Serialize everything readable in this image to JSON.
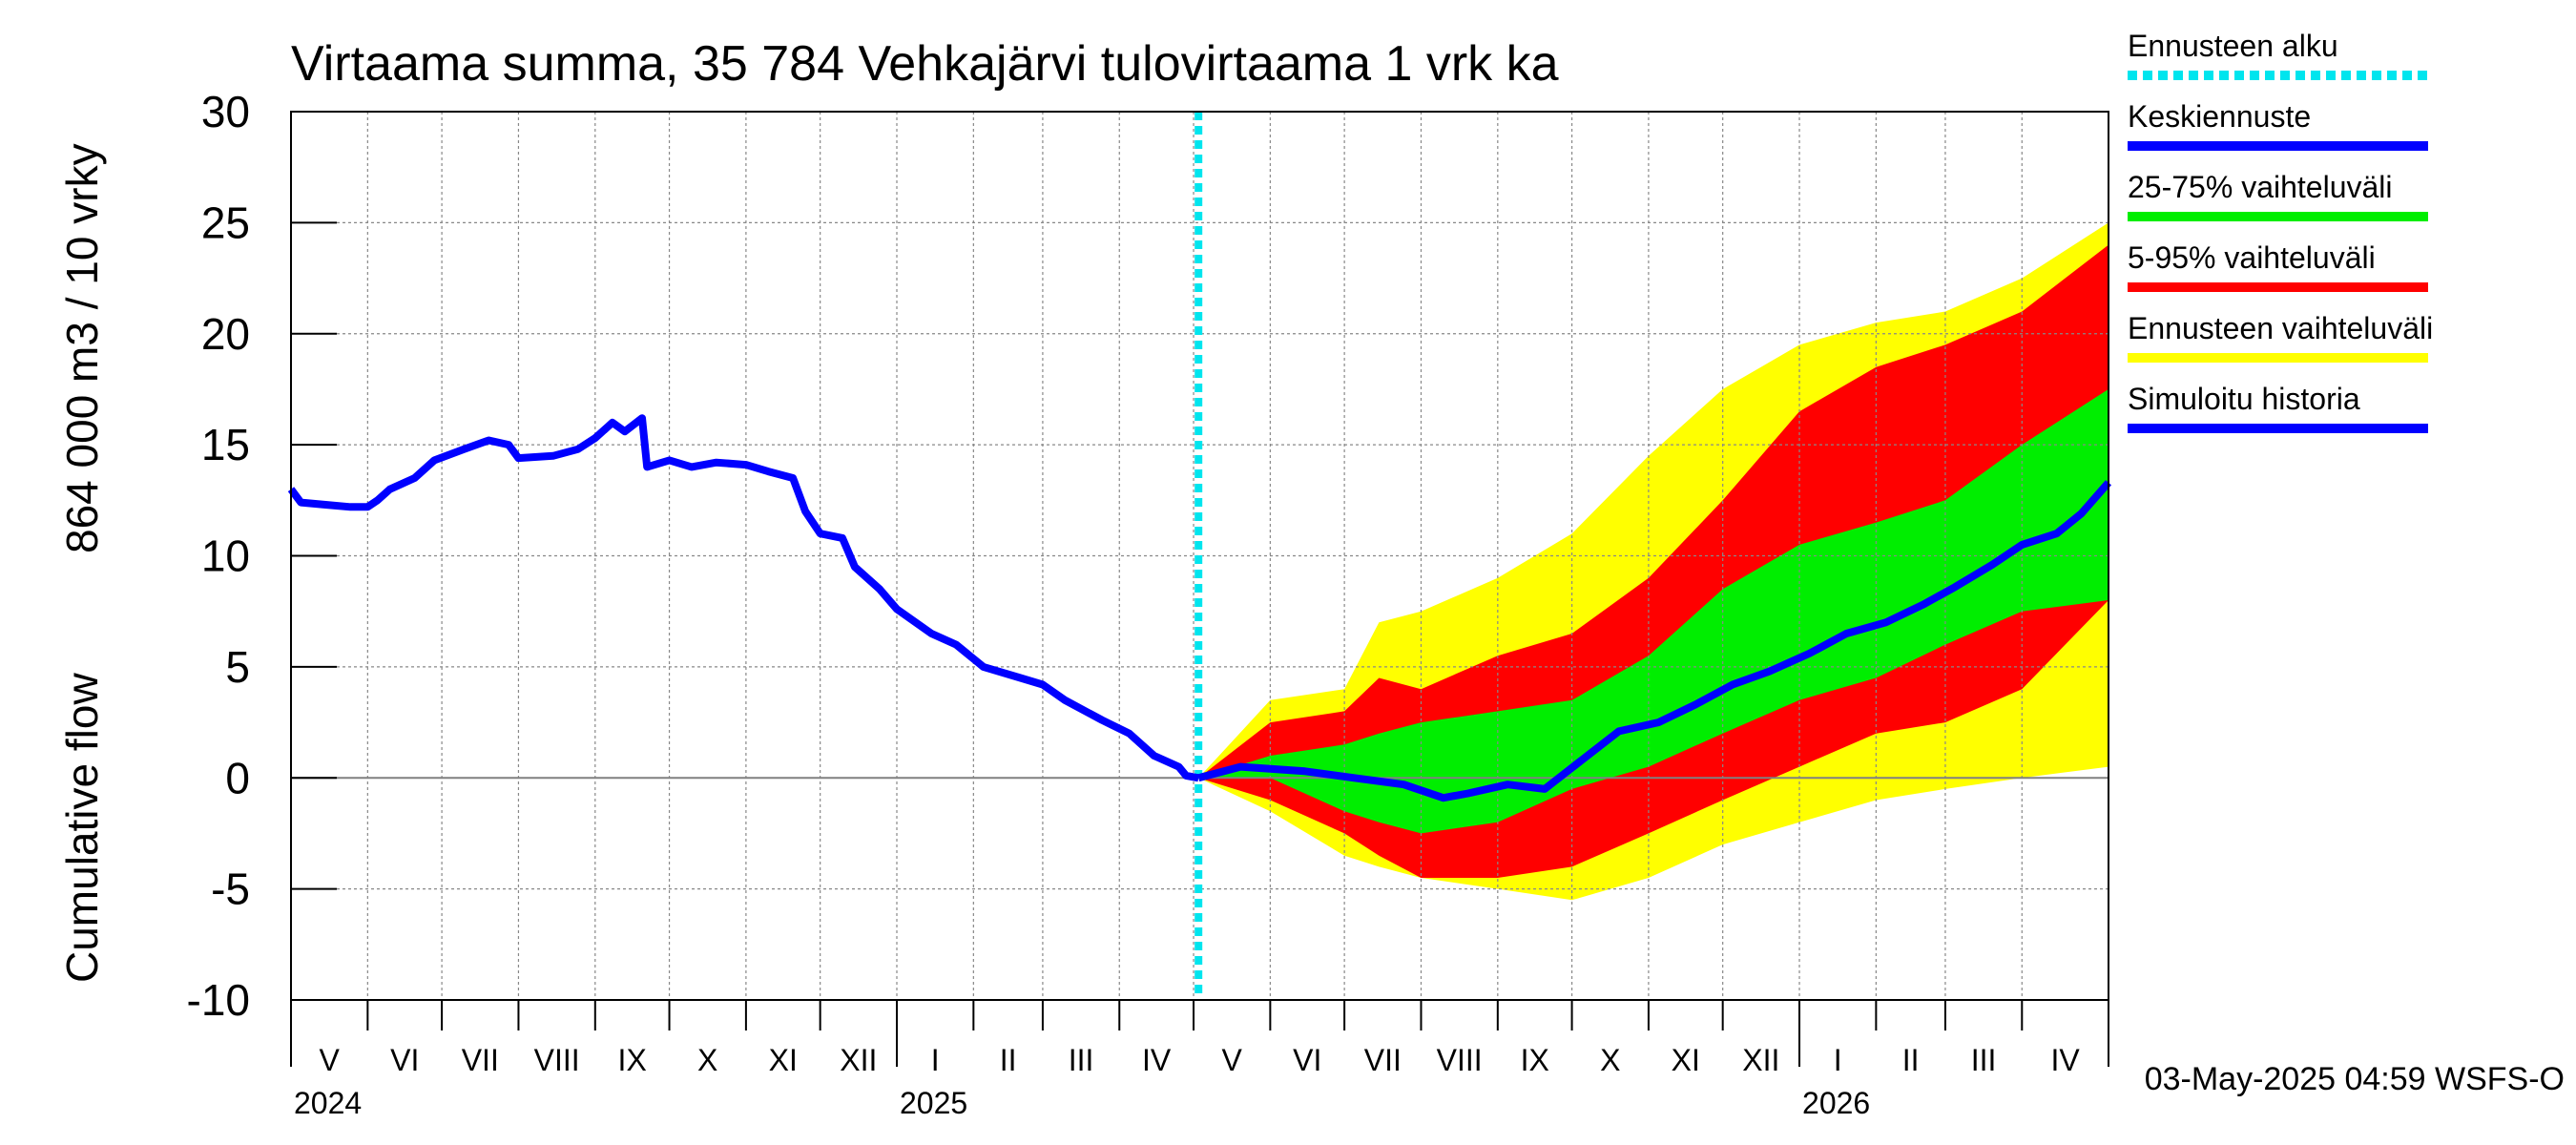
{
  "title": "Virtaama summa, 35 784 Vehkajärvi tulovirtaama 1 vrk ka",
  "ylabel_line1": "Cumulative flow",
  "ylabel_line2": "864 000 m3 / 10 vrky",
  "footer": "03-May-2025 04:59 WSFS-O",
  "colors": {
    "forecast_start": "#00e5ee",
    "median": "#0000ff",
    "band_25_75": "#00ee00",
    "band_5_95": "#ff0000",
    "band_full": "#ffff00",
    "history": "#0000ff",
    "grid": "#888888",
    "zero_line": "#808080"
  },
  "legend": [
    {
      "label": "Ennusteen alku",
      "color": "#00e5ee",
      "style": "dotted"
    },
    {
      "label": "Keskiennuste",
      "color": "#0000ff",
      "style": "solid"
    },
    {
      "label": "25-75% vaihteluväli",
      "color": "#00ee00",
      "style": "solid"
    },
    {
      "label": "5-95% vaihteluväli",
      "color": "#ff0000",
      "style": "solid"
    },
    {
      "label": "Ennusteen vaihteluväli",
      "color": "#ffff00",
      "style": "solid"
    },
    {
      "label": "Simuloitu historia",
      "color": "#0000ff",
      "style": "solid"
    }
  ],
  "chart_data": {
    "type": "area",
    "title": "Virtaama summa, 35 784 Vehkajärvi tulovirtaama 1 vrk ka",
    "ylabel": "Cumulative flow    864 000 m3 / 10 vrky",
    "ylim": [
      -10,
      30
    ],
    "yticks": [
      -10,
      -5,
      0,
      5,
      10,
      15,
      20,
      25,
      30
    ],
    "xlim": [
      "2024-05-01",
      "2026-05-06"
    ],
    "forecast_start": "2025-05-03",
    "grid": true,
    "legend_position": "right",
    "months": [
      {
        "label": "V",
        "start": "2024-05-01"
      },
      {
        "label": "VI",
        "start": "2024-06-01"
      },
      {
        "label": "VII",
        "start": "2024-07-01"
      },
      {
        "label": "VIII",
        "start": "2024-08-01"
      },
      {
        "label": "IX",
        "start": "2024-09-01"
      },
      {
        "label": "X",
        "start": "2024-10-01"
      },
      {
        "label": "XI",
        "start": "2024-11-01"
      },
      {
        "label": "XII",
        "start": "2024-12-01"
      },
      {
        "label": "I",
        "start": "2025-01-01"
      },
      {
        "label": "II",
        "start": "2025-02-01"
      },
      {
        "label": "III",
        "start": "2025-03-01"
      },
      {
        "label": "IV",
        "start": "2025-04-01"
      },
      {
        "label": "V",
        "start": "2025-05-01"
      },
      {
        "label": "VI",
        "start": "2025-06-01"
      },
      {
        "label": "VII",
        "start": "2025-07-01"
      },
      {
        "label": "VIII",
        "start": "2025-08-01"
      },
      {
        "label": "IX",
        "start": "2025-09-01"
      },
      {
        "label": "X",
        "start": "2025-10-01"
      },
      {
        "label": "XI",
        "start": "2025-11-01"
      },
      {
        "label": "XII",
        "start": "2025-12-01"
      },
      {
        "label": "I",
        "start": "2026-01-01"
      },
      {
        "label": "II",
        "start": "2026-02-01"
      },
      {
        "label": "III",
        "start": "2026-03-01"
      },
      {
        "label": "IV",
        "start": "2026-04-01"
      }
    ],
    "years": [
      {
        "label": "2024",
        "start": "2024-05-01"
      },
      {
        "label": "2025",
        "start": "2025-01-01"
      },
      {
        "label": "2026",
        "start": "2026-01-01"
      }
    ],
    "history": {
      "name": "Simuloitu historia",
      "points": [
        [
          "2024-05-01",
          13.0
        ],
        [
          "2024-05-05",
          12.4
        ],
        [
          "2024-05-15",
          12.3
        ],
        [
          "2024-05-25",
          12.2
        ],
        [
          "2024-06-01",
          12.2
        ],
        [
          "2024-06-05",
          12.5
        ],
        [
          "2024-06-10",
          13.0
        ],
        [
          "2024-06-20",
          13.5
        ],
        [
          "2024-06-28",
          14.3
        ],
        [
          "2024-07-10",
          14.8
        ],
        [
          "2024-07-20",
          15.2
        ],
        [
          "2024-07-28",
          15.0
        ],
        [
          "2024-08-01",
          14.4
        ],
        [
          "2024-08-15",
          14.5
        ],
        [
          "2024-08-25",
          14.8
        ],
        [
          "2024-09-01",
          15.3
        ],
        [
          "2024-09-08",
          16.0
        ],
        [
          "2024-09-13",
          15.6
        ],
        [
          "2024-09-20",
          16.2
        ],
        [
          "2024-09-22",
          14.0
        ],
        [
          "2024-10-01",
          14.3
        ],
        [
          "2024-10-10",
          14.0
        ],
        [
          "2024-10-20",
          14.2
        ],
        [
          "2024-11-01",
          14.1
        ],
        [
          "2024-11-10",
          13.8
        ],
        [
          "2024-11-20",
          13.5
        ],
        [
          "2024-11-25",
          12.0
        ],
        [
          "2024-12-01",
          11.0
        ],
        [
          "2024-12-10",
          10.8
        ],
        [
          "2024-12-15",
          9.5
        ],
        [
          "2024-12-25",
          8.5
        ],
        [
          "2025-01-01",
          7.6
        ],
        [
          "2025-01-15",
          6.5
        ],
        [
          "2025-01-25",
          6.0
        ],
        [
          "2025-02-05",
          5.0
        ],
        [
          "2025-02-20",
          4.5
        ],
        [
          "2025-03-01",
          4.2
        ],
        [
          "2025-03-10",
          3.5
        ],
        [
          "2025-03-25",
          2.6
        ],
        [
          "2025-04-05",
          2.0
        ],
        [
          "2025-04-15",
          1.0
        ],
        [
          "2025-04-25",
          0.5
        ],
        [
          "2025-04-28",
          0.1
        ],
        [
          "2025-05-03",
          0.0
        ]
      ]
    },
    "median": {
      "name": "Keskiennuste",
      "points": [
        [
          "2025-05-03",
          0.0
        ],
        [
          "2025-05-20",
          0.5
        ],
        [
          "2025-06-15",
          0.3
        ],
        [
          "2025-07-05",
          0.0
        ],
        [
          "2025-07-25",
          -0.3
        ],
        [
          "2025-08-10",
          -0.9
        ],
        [
          "2025-08-20",
          -0.7
        ],
        [
          "2025-09-05",
          -0.3
        ],
        [
          "2025-09-20",
          -0.5
        ],
        [
          "2025-10-05",
          0.8
        ],
        [
          "2025-10-20",
          2.1
        ],
        [
          "2025-11-05",
          2.5
        ],
        [
          "2025-11-20",
          3.3
        ],
        [
          "2025-12-05",
          4.2
        ],
        [
          "2025-12-20",
          4.8
        ],
        [
          "2026-01-05",
          5.6
        ],
        [
          "2026-01-20",
          6.5
        ],
        [
          "2026-02-05",
          7.0
        ],
        [
          "2026-02-20",
          7.8
        ],
        [
          "2026-03-05",
          8.6
        ],
        [
          "2026-03-20",
          9.6
        ],
        [
          "2026-04-01",
          10.5
        ],
        [
          "2026-04-15",
          11.0
        ],
        [
          "2026-04-25",
          11.9
        ],
        [
          "2026-05-06",
          13.3
        ]
      ]
    },
    "bands": [
      {
        "name": "Ennusteen vaihteluväli",
        "points": [
          [
            "2025-05-03",
            0.0,
            0.0
          ],
          [
            "2025-06-01",
            3.5,
            -1.5
          ],
          [
            "2025-07-01",
            4.0,
            -3.5
          ],
          [
            "2025-07-15",
            7.0,
            -4.0
          ],
          [
            "2025-08-01",
            7.5,
            -4.5
          ],
          [
            "2025-09-01",
            9.0,
            -5.0
          ],
          [
            "2025-10-01",
            11.0,
            -5.5
          ],
          [
            "2025-11-01",
            14.5,
            -4.5
          ],
          [
            "2025-12-01",
            17.5,
            -3.0
          ],
          [
            "2026-01-01",
            19.5,
            -2.0
          ],
          [
            "2026-02-01",
            20.5,
            -1.0
          ],
          [
            "2026-03-01",
            21.0,
            -0.5
          ],
          [
            "2026-04-01",
            22.5,
            0.0
          ],
          [
            "2026-05-06",
            25.0,
            0.5
          ]
        ]
      },
      {
        "name": "5-95% vaihteluväli",
        "points": [
          [
            "2025-05-03",
            0.0,
            0.0
          ],
          [
            "2025-06-01",
            2.5,
            -1.0
          ],
          [
            "2025-07-01",
            3.0,
            -2.5
          ],
          [
            "2025-07-15",
            4.5,
            -3.5
          ],
          [
            "2025-08-01",
            4.0,
            -4.5
          ],
          [
            "2025-09-01",
            5.5,
            -4.5
          ],
          [
            "2025-10-01",
            6.5,
            -4.0
          ],
          [
            "2025-11-01",
            9.0,
            -2.5
          ],
          [
            "2025-12-01",
            12.5,
            -1.0
          ],
          [
            "2026-01-01",
            16.5,
            0.5
          ],
          [
            "2026-02-01",
            18.5,
            2.0
          ],
          [
            "2026-03-01",
            19.5,
            2.5
          ],
          [
            "2026-04-01",
            21.0,
            4.0
          ],
          [
            "2026-05-06",
            24.0,
            8.0
          ]
        ]
      },
      {
        "name": "25-75% vaihteluväli",
        "points": [
          [
            "2025-05-03",
            0.0,
            0.0
          ],
          [
            "2025-06-01",
            1.0,
            0.0
          ],
          [
            "2025-07-01",
            1.5,
            -1.5
          ],
          [
            "2025-07-15",
            2.0,
            -2.0
          ],
          [
            "2025-08-01",
            2.5,
            -2.5
          ],
          [
            "2025-09-01",
            3.0,
            -2.0
          ],
          [
            "2025-10-01",
            3.5,
            -0.5
          ],
          [
            "2025-11-01",
            5.5,
            0.5
          ],
          [
            "2025-12-01",
            8.5,
            2.0
          ],
          [
            "2026-01-01",
            10.5,
            3.5
          ],
          [
            "2026-02-01",
            11.5,
            4.5
          ],
          [
            "2026-03-01",
            12.5,
            6.0
          ],
          [
            "2026-04-01",
            15.0,
            7.5
          ],
          [
            "2026-05-06",
            17.5,
            8.0
          ]
        ]
      }
    ]
  }
}
